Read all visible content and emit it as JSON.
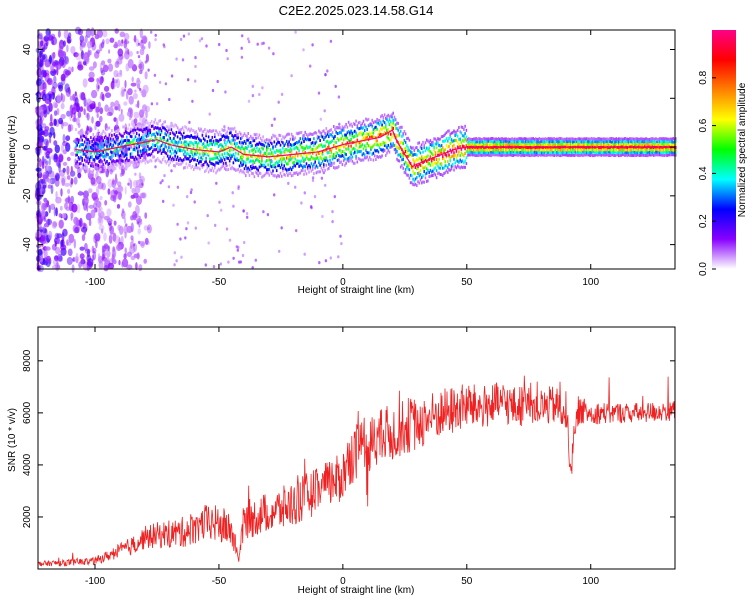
{
  "title": "C2E2.2025.023.14.58.G14",
  "chart_data": [
    {
      "type": "heatmap",
      "xlabel": "Height of straight line (km)",
      "ylabel": "Frequency (Hz)",
      "xlim": [
        -123,
        134
      ],
      "ylim": [
        -50,
        48
      ],
      "xticks": [
        -100,
        -50,
        0,
        50,
        100
      ],
      "yticks": [
        -40,
        -20,
        0,
        20,
        40
      ],
      "colorbar": {
        "label": "Normalized spectral amplitude",
        "range": [
          0,
          1
        ],
        "ticks": [
          0.0,
          0.2,
          0.4,
          0.6,
          0.8
        ],
        "colormap": [
          "#ffffff",
          "#8800ff",
          "#0000ff",
          "#00ffff",
          "#00ff00",
          "#ffff00",
          "#ff8000",
          "#ff0000",
          "#ff0088"
        ]
      },
      "ridge": {
        "x": [
          -108,
          -100,
          -90,
          -80,
          -75,
          -70,
          -60,
          -50,
          -45,
          -40,
          -30,
          -20,
          -10,
          0,
          10,
          15,
          20,
          22,
          25,
          28,
          30,
          35,
          40,
          45,
          50,
          60,
          80,
          90,
          100,
          120,
          134
        ],
        "y": [
          -1,
          -2,
          0,
          2,
          3,
          1,
          -1,
          -2,
          0,
          -3,
          -4,
          -3,
          -2,
          1,
          3,
          4,
          7,
          2,
          -3,
          -8,
          -7,
          -5,
          -3,
          -1,
          0,
          0,
          0,
          0,
          0,
          0,
          0
        ]
      },
      "grid": false
    },
    {
      "type": "line",
      "color": "#ee2222",
      "xlabel": "Height of straight line (km)",
      "ylabel": "SNR (10 * v/v)",
      "xlim": [
        -123,
        134
      ],
      "ylim": [
        0,
        9300
      ],
      "xticks": [
        -100,
        -50,
        0,
        50,
        100
      ],
      "yticks": [
        2000,
        4000,
        6000,
        8000
      ],
      "series": [
        {
          "x": [
            -123,
            -110,
            -100,
            -95,
            -90,
            -85,
            -80,
            -75,
            -70,
            -65,
            -60,
            -55,
            -50,
            -45,
            -42,
            -40,
            -35,
            -30,
            -25,
            -20,
            -15,
            -10,
            -5,
            0,
            3,
            6,
            8,
            10,
            12,
            15,
            20,
            25,
            30,
            35,
            40,
            45,
            50,
            55,
            60,
            65,
            70,
            75,
            80,
            85,
            90,
            92,
            95,
            100,
            110,
            120,
            134
          ],
          "y": [
            200,
            250,
            300,
            500,
            700,
            900,
            1200,
            1300,
            1350,
            1400,
            1600,
            1800,
            1700,
            1500,
            400,
            1800,
            2000,
            2200,
            2300,
            2500,
            2800,
            3000,
            3300,
            3600,
            4300,
            4600,
            5200,
            3500,
            5300,
            5000,
            5200,
            5500,
            5600,
            5800,
            6000,
            6100,
            6300,
            6200,
            6300,
            6400,
            6200,
            6400,
            6200,
            6300,
            6100,
            4000,
            6100,
            6000,
            6000,
            6000,
            6100
          ],
          "noise": [
            200,
            250,
            300,
            400,
            600,
            700,
            900,
            1000,
            1100,
            1200,
            1300,
            1400,
            1500,
            1400,
            300,
            1500,
            1500,
            1600,
            1700,
            1800,
            1800,
            1800,
            1900,
            2000,
            2200,
            2300,
            2400,
            2400,
            2400,
            2300,
            2200,
            2200,
            2100,
            2000,
            1900,
            1900,
            1800,
            1700,
            1700,
            1600,
            1600,
            1600,
            1500,
            1500,
            1500,
            1500,
            1100,
            900,
            800,
            800,
            800
          ]
        }
      ],
      "grid": false
    }
  ]
}
